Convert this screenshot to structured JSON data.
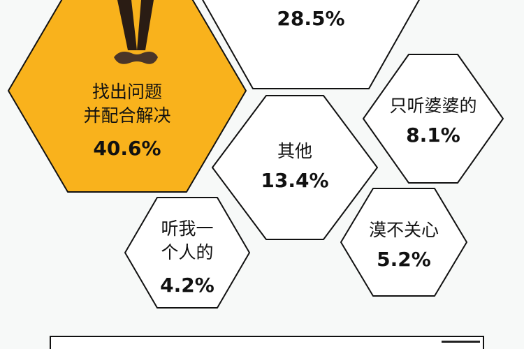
{
  "chart_data": {
    "type": "hexagon-infographic",
    "unit": "%",
    "items": [
      {
        "label_lines": [
          "找出问题",
          "并配合解决"
        ],
        "value": 40.6,
        "display": "40.6%",
        "color": "#f9b21c"
      },
      {
        "label_lines": [],
        "value": 28.5,
        "display": "28.5%",
        "color": "#ffffff"
      },
      {
        "label_lines": [
          "只听婆婆的"
        ],
        "value": 8.1,
        "display": "8.1%",
        "color": "#ffffff"
      },
      {
        "label_lines": [
          "其他"
        ],
        "value": 13.4,
        "display": "13.4%",
        "color": "#ffffff"
      },
      {
        "label_lines": [
          "听我一",
          "个人的"
        ],
        "value": 4.2,
        "display": "4.2%",
        "color": "#ffffff"
      },
      {
        "label_lines": [
          "漠不关心"
        ],
        "value": 5.2,
        "display": "5.2%",
        "color": "#ffffff"
      }
    ]
  },
  "colors": {
    "background": "#f7f9f8",
    "accent": "#f9b21c",
    "outline": "#111111"
  }
}
